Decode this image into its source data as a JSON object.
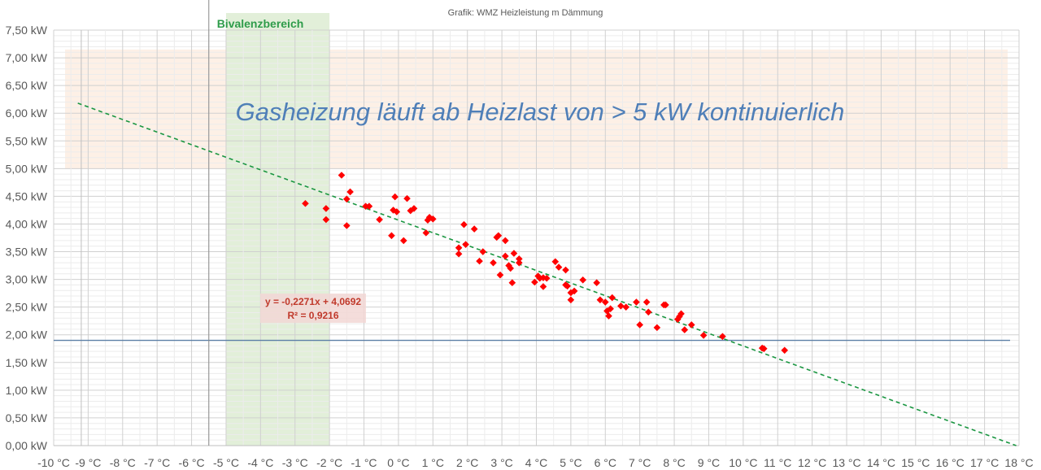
{
  "chart_data": {
    "type": "scatter",
    "title": "Grafik: WMZ Heizleistung m Dämmung",
    "xlim": [
      -10,
      18
    ],
    "ylim": [
      0,
      7.5
    ],
    "x_tick_labels": [
      "-10 °C",
      "-9 °C",
      "-8 °C",
      "-7 °C",
      "-6 °C",
      "-5 °C",
      "-4 °C",
      "-3 °C",
      "-2 °C",
      "-1 °C",
      "0 °C",
      "1 °C",
      "2 °C",
      "3 °C",
      "4 °C",
      "5 °C",
      "6 °C",
      "7 °C",
      "8 °C",
      "9 °C",
      "10 °C",
      "11 °C",
      "12 °C",
      "13 °C",
      "14 °C",
      "15 °C",
      "16 °C",
      "17 °C",
      "18 °C"
    ],
    "x_tick_values": [
      -10,
      -9,
      -8,
      -7,
      -6,
      -5,
      -4,
      -3,
      -2,
      -1,
      0,
      1,
      2,
      3,
      4,
      5,
      6,
      7,
      8,
      9,
      10,
      11,
      12,
      13,
      14,
      15,
      16,
      17,
      18
    ],
    "y_tick_labels": [
      "0,00 kW",
      "0,50 kW",
      "1,00 kW",
      "1,50 kW",
      "2,00 kW",
      "2,50 kW",
      "3,00 kW",
      "3,50 kW",
      "4,00 kW",
      "4,50 kW",
      "5,00 kW",
      "5,50 kW",
      "6,00 kW",
      "6,50 kW",
      "7,00 kW",
      "7,50 kW"
    ],
    "y_tick_values": [
      0,
      0.5,
      1,
      1.5,
      2,
      2.5,
      3,
      3.5,
      4,
      4.5,
      5,
      5.5,
      6,
      6.5,
      7,
      7.5
    ],
    "grid": true,
    "series": [
      {
        "points": [
          [
            -2.7,
            4.37
          ],
          [
            -2.1,
            4.28
          ],
          [
            -2.1,
            4.08
          ],
          [
            -1.65,
            4.88
          ],
          [
            -1.5,
            4.45
          ],
          [
            -1.5,
            3.97
          ],
          [
            -1.4,
            4.58
          ],
          [
            -0.95,
            4.32
          ],
          [
            -0.85,
            4.32
          ],
          [
            -0.55,
            4.08
          ],
          [
            -0.2,
            3.79
          ],
          [
            -0.15,
            4.25
          ],
          [
            -0.1,
            4.49
          ],
          [
            -0.05,
            4.22
          ],
          [
            0.15,
            3.7
          ],
          [
            0.25,
            4.46
          ],
          [
            0.35,
            4.24
          ],
          [
            0.45,
            4.28
          ],
          [
            0.8,
            3.84
          ],
          [
            0.85,
            4.07
          ],
          [
            0.9,
            4.12
          ],
          [
            1.0,
            4.09
          ],
          [
            1.75,
            3.57
          ],
          [
            1.75,
            3.46
          ],
          [
            1.9,
            3.99
          ],
          [
            1.95,
            3.63
          ],
          [
            2.2,
            3.91
          ],
          [
            2.35,
            3.33
          ],
          [
            2.45,
            3.5
          ],
          [
            2.75,
            3.3
          ],
          [
            2.85,
            3.76
          ],
          [
            2.9,
            3.79
          ],
          [
            2.95,
            3.08
          ],
          [
            3.1,
            3.7
          ],
          [
            3.1,
            3.42
          ],
          [
            3.2,
            3.25
          ],
          [
            3.25,
            3.2
          ],
          [
            3.3,
            2.94
          ],
          [
            3.35,
            3.47
          ],
          [
            3.5,
            3.37
          ],
          [
            3.5,
            3.3
          ],
          [
            3.95,
            2.95
          ],
          [
            4.05,
            3.06
          ],
          [
            4.1,
            3.02
          ],
          [
            4.2,
            2.87
          ],
          [
            4.2,
            3.03
          ],
          [
            4.3,
            3.02
          ],
          [
            4.55,
            3.32
          ],
          [
            4.65,
            3.22
          ],
          [
            4.85,
            3.17
          ],
          [
            4.85,
            2.9
          ],
          [
            4.9,
            2.88
          ],
          [
            5.0,
            2.76
          ],
          [
            5.0,
            2.63
          ],
          [
            5.1,
            2.79
          ],
          [
            5.35,
            2.99
          ],
          [
            5.75,
            2.94
          ],
          [
            5.85,
            2.63
          ],
          [
            6.0,
            2.59
          ],
          [
            6.05,
            2.43
          ],
          [
            6.1,
            2.34
          ],
          [
            6.15,
            2.47
          ],
          [
            6.2,
            2.67
          ],
          [
            6.45,
            2.52
          ],
          [
            6.6,
            2.5
          ],
          [
            6.9,
            2.59
          ],
          [
            7.0,
            2.18
          ],
          [
            7.2,
            2.59
          ],
          [
            7.25,
            2.41
          ],
          [
            7.5,
            2.13
          ],
          [
            7.7,
            2.54
          ],
          [
            7.75,
            2.54
          ],
          [
            8.1,
            2.28
          ],
          [
            8.15,
            2.33
          ],
          [
            8.2,
            2.38
          ],
          [
            8.3,
            2.09
          ],
          [
            8.5,
            2.18
          ],
          [
            8.85,
            1.99
          ],
          [
            9.4,
            1.97
          ],
          [
            10.55,
            1.76
          ],
          [
            10.6,
            1.75
          ],
          [
            11.2,
            1.72
          ]
        ],
        "color": "#ff0000",
        "marker": "diamond"
      }
    ],
    "trendline": {
      "equation_label": "y = -0,2271x + 4,0692",
      "r2_label": "R² = 0,9216",
      "slope": -0.2271,
      "intercept": 4.0692,
      "color": "#1a9641",
      "style": "dashed"
    },
    "bivalence_band": {
      "label": "Bivalenzbereich",
      "x_from": -5,
      "x_to": -2,
      "color": "#e2efd9"
    },
    "gas_band": {
      "y_from": 5.0,
      "y_to": 7.15,
      "color": "#fdf0e6"
    },
    "annotation": "Gasheizung läuft ab Heizlast von > 5 kW kontinuierlich",
    "reference_lines": {
      "horizontal_y": 1.9,
      "vertical_x": -5.5
    }
  }
}
